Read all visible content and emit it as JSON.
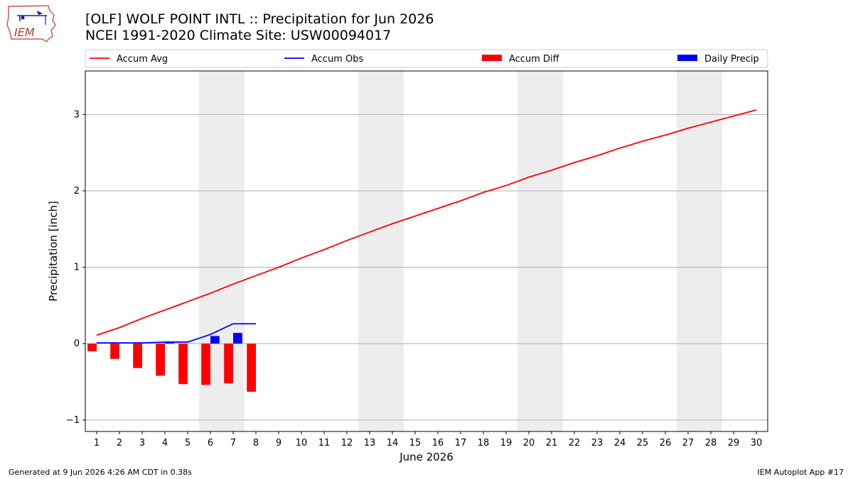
{
  "page": {
    "title_line1": "[OLF] WOLF POINT INTL :: Precipitation for Jun 2026",
    "title_line2": "NCEI 1991-2020 Climate Site: USW00094017",
    "logo_text": "IEM",
    "footer_left": "Generated at 9 Jun 2026 4:26 AM CDT in 0.38s",
    "footer_right": "IEM Autoplot App #17"
  },
  "colors": {
    "accum_avg": "#ff0000",
    "accum_obs": "#0000ff",
    "accum_diff": "#ff0000",
    "daily_precip": "#0000ff",
    "weekend_shade": "#ededed",
    "grid": "#b0b0b0"
  },
  "chart_data": {
    "type": "line",
    "xlabel": "June 2026",
    "ylabel": "Precipitation [inch]",
    "xlim": [
      0.5,
      30.5
    ],
    "ylim": [
      -1.15,
      3.57
    ],
    "yticks": [
      -1,
      0,
      1,
      2,
      3
    ],
    "xticks": [
      1,
      2,
      3,
      4,
      5,
      6,
      7,
      8,
      9,
      10,
      11,
      12,
      13,
      14,
      15,
      16,
      17,
      18,
      19,
      20,
      21,
      22,
      23,
      24,
      25,
      26,
      27,
      28,
      29,
      30
    ],
    "grid": "horizontal",
    "legend_position": "top",
    "weekend_spans": [
      [
        6,
        7
      ],
      [
        13,
        14
      ],
      [
        20,
        21
      ],
      [
        27,
        28
      ]
    ],
    "series": [
      {
        "name": "Accum Avg",
        "kind": "line",
        "x": [
          1,
          2,
          3,
          4,
          5,
          6,
          7,
          8,
          9,
          10,
          11,
          12,
          13,
          14,
          15,
          16,
          17,
          18,
          19,
          20,
          21,
          22,
          23,
          24,
          25,
          26,
          27,
          28,
          29,
          30
        ],
        "values": [
          0.11,
          0.21,
          0.33,
          0.44,
          0.55,
          0.66,
          0.78,
          0.89,
          1.0,
          1.12,
          1.23,
          1.35,
          1.46,
          1.57,
          1.67,
          1.77,
          1.87,
          1.98,
          2.07,
          2.18,
          2.27,
          2.37,
          2.46,
          2.56,
          2.65,
          2.73,
          2.82,
          2.9,
          2.98,
          3.06
        ]
      },
      {
        "name": "Accum Obs",
        "kind": "line",
        "x": [
          1,
          2,
          3,
          4,
          5,
          6,
          7,
          8
        ],
        "values": [
          0.01,
          0.01,
          0.01,
          0.02,
          0.02,
          0.12,
          0.26,
          0.26
        ]
      },
      {
        "name": "Accum Diff",
        "kind": "bar",
        "x": [
          1,
          2,
          3,
          4,
          5,
          6,
          7,
          8
        ],
        "values": [
          -0.1,
          -0.2,
          -0.32,
          -0.42,
          -0.53,
          -0.54,
          -0.52,
          -0.63
        ]
      },
      {
        "name": "Daily Precip",
        "kind": "bar",
        "x": [
          1,
          2,
          3,
          4,
          5,
          6,
          7,
          8
        ],
        "values": [
          0.0,
          0.0,
          0.0,
          0.01,
          0.0,
          0.1,
          0.14,
          0.0
        ]
      }
    ]
  }
}
